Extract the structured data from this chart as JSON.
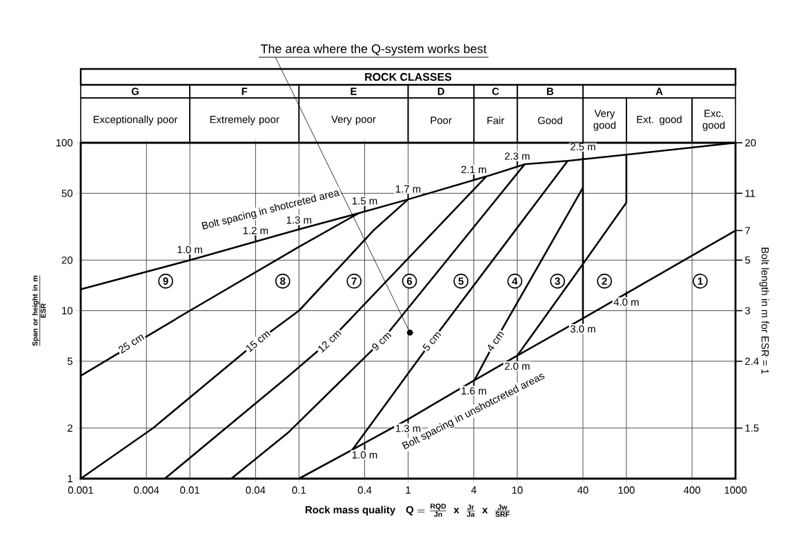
{
  "chart_data": [
    {
      "type": "line",
      "xlabel": "\\mathbf{Rock\\ mass\\ quality\\quad Q = \\frac{RQD}{Jn}\\ \\ x\\ \\ \\frac{Jr}{Ja}\\ \\ x\\ \\ \\frac{Jw}{SRF}}",
      "ylabel": "\\mathbf{\\frac{Span\\ or\\ height\\ in\\ m}{ESR}}",
      "log": "xy",
      "grid": true,
      "xlim": [
        0.001,
        1000
      ],
      "ylim": [
        1,
        100
      ],
      "xticks": [
        0.001,
        0.004,
        0.01,
        0.04,
        0.1,
        0.4,
        1,
        4,
        10,
        40,
        100,
        400,
        1000
      ],
      "yticks": [
        1,
        2,
        5,
        10,
        20,
        50,
        100
      ],
      "series": [
        {
          "color": "#000000",
          "x": [
            0.001,
            0.01,
            0.1,
            0.35,
            1,
            5.2,
            11.7,
            29,
            100,
            1000
          ],
          "values": [
            13.4,
            20,
            30.5,
            38,
            46,
            63,
            74.5,
            78,
            85,
            100
          ]
        },
        {
          "color": "#000000",
          "x": [
            0.001,
            0.01,
            0.1,
            0.35
          ],
          "values": [
            4.1,
            10,
            24,
            38
          ]
        },
        {
          "color": "#000000",
          "x": [
            0.001,
            0.0046,
            0.042,
            0.1,
            0.48,
            1
          ],
          "values": [
            1,
            2,
            6.6,
            10,
            30,
            46
          ]
        },
        {
          "color": "#000000",
          "x": [
            0.0059,
            0.081,
            0.19,
            5.2
          ],
          "values": [
            1,
            4.1,
            6.6,
            63
          ]
        },
        {
          "color": "#000000",
          "x": [
            0.024,
            0.081,
            0.57,
            11.7
          ],
          "values": [
            1,
            1.9,
            6.6,
            74.5
          ]
        },
        {
          "color": "#000000",
          "x": [
            0.31,
            1.65,
            29
          ],
          "values": [
            1.49,
            6.6,
            78
          ]
        },
        {
          "color": "#000000",
          "x": [
            4.05,
            6.3,
            40
          ],
          "values": [
            3.85,
            6.6,
            54
          ]
        },
        {
          "color": "#000000",
          "x": [
            10,
            40,
            100
          ],
          "values": [
            5.4,
            19,
            44
          ]
        },
        {
          "color": "#000000",
          "x": [
            0.1,
            0.31,
            1,
            4.05,
            10,
            40,
            1000
          ],
          "values": [
            1,
            1.49,
            2.26,
            3.85,
            5.4,
            9,
            30
          ]
        },
        {
          "color": "#000000",
          "x": [
            40,
            40
          ],
          "values": [
            9,
            82
          ]
        },
        {
          "color": "#000000",
          "x": [
            100,
            100
          ],
          "values": [
            44,
            85
          ]
        }
      ],
      "annotations": [
        {
          "text": "The area where the Q-system works best",
          "x": 1.04,
          "y": 7.4
        },
        "Bolt spacing in shotcreted area",
        "Bolt spacing in unshotcreted areas",
        {
          "text": "1.0 m",
          "x": 0.01,
          "y": 20
        },
        {
          "text": "1.2 m",
          "x": 0.04,
          "y": 26
        },
        {
          "text": "1.3 m",
          "x": 0.1,
          "y": 30
        },
        {
          "text": "1.5 m",
          "x": 0.4,
          "y": 39
        },
        {
          "text": "1.7 m",
          "x": 1,
          "y": 46
        },
        {
          "text": "2.1 m",
          "x": 4,
          "y": 60
        },
        {
          "text": "2.3 m",
          "x": 10,
          "y": 72
        },
        {
          "text": "2.5 m",
          "x": 40,
          "y": 82
        },
        {
          "text": "1.0 m",
          "x": 0.4,
          "y": 1.6
        },
        {
          "text": "1.3 m",
          "x": 1,
          "y": 2.3
        },
        {
          "text": "1.6 m",
          "x": 4,
          "y": 3.85
        },
        {
          "text": "2.0 m",
          "x": 10,
          "y": 5.4
        },
        {
          "text": "3.0 m",
          "x": 40,
          "y": 9
        },
        {
          "text": "4.0 m",
          "x": 100,
          "y": 13
        },
        {
          "text": "25 cm",
          "x": 0.0029,
          "y": 6.4
        },
        {
          "text": "15 cm",
          "x": 0.042,
          "y": 6.6
        },
        {
          "text": "12 cm",
          "x": 0.19,
          "y": 6.6
        },
        {
          "text": "9 cm",
          "x": 0.57,
          "y": 6.6
        },
        {
          "text": "5 cm",
          "x": 1.65,
          "y": 6.6
        },
        {
          "text": "4 cm",
          "x": 6.3,
          "y": 6.6
        },
        {
          "text": "9",
          "x": 0.006,
          "y": 15
        },
        {
          "text": "8",
          "x": 0.071,
          "y": 15
        },
        {
          "text": "7",
          "x": 0.32,
          "y": 15
        },
        {
          "text": "6",
          "x": 1.03,
          "y": 15
        },
        {
          "text": "5",
          "x": 3.05,
          "y": 15
        },
        {
          "text": "4",
          "x": 9.5,
          "y": 15
        },
        {
          "text": "3",
          "x": 23.4,
          "y": 15
        },
        {
          "text": "2",
          "x": 63,
          "y": 15
        },
        {
          "text": "1",
          "x": 475,
          "y": 15
        }
      ]
    },
    {
      "type": "other",
      "title": "ROCK CLASSES",
      "annotations": [
        "G",
        "F",
        "E",
        "D",
        "C",
        "B",
        "A",
        "Exceptionally poor",
        "Extremely poor",
        "Very poor",
        "Poor",
        "Fair",
        "Good",
        "Very good",
        "Ext. good",
        "Exc. good"
      ]
    },
    {
      "type": "other",
      "ylabel": "Bolt length in m for ESR = 1",
      "annotations": [
        "20",
        "11",
        "7",
        "5",
        "3",
        "2.4",
        "1.5"
      ]
    }
  ]
}
